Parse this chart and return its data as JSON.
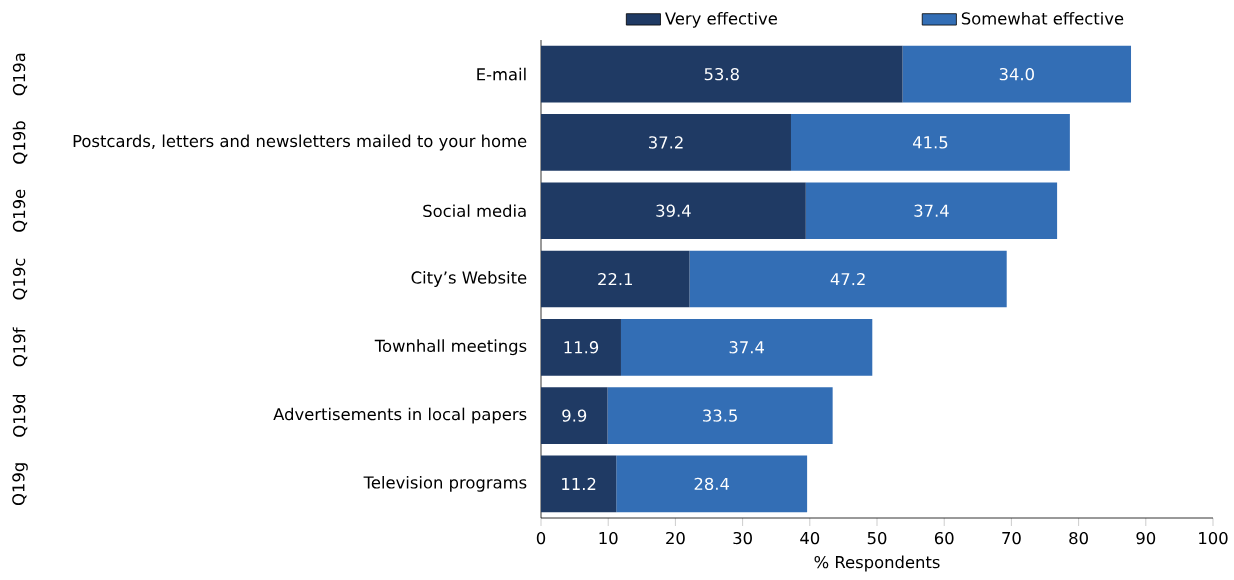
{
  "chart_data": {
    "type": "bar",
    "orientation": "horizontal",
    "stacked": true,
    "xlabel": "% Respondents",
    "categories": [
      "E-mail",
      "Postcards, letters and newsletters mailed to your home",
      "Social media",
      "City’s Website",
      "Townhall meetings",
      "Advertisements in local papers",
      "Television programs"
    ],
    "series": [
      {
        "name": "Very effective",
        "color": "#1f3a64",
        "values": [
          53.8,
          37.2,
          39.4,
          22.1,
          11.9,
          9.9,
          11.2
        ],
        "value_labels": [
          "53.8",
          "37.2",
          "39.4",
          "22.1",
          "11.9",
          "9.9",
          "11.2"
        ]
      },
      {
        "name": "Somewhat effective",
        "color": "#336eb5",
        "values": [
          34.0,
          41.5,
          37.4,
          47.2,
          37.4,
          33.5,
          28.4
        ],
        "value_labels": [
          "34.0",
          "41.5",
          "37.4",
          "47.2",
          "37.4",
          "33.5",
          "28.4"
        ]
      }
    ],
    "xlim": [
      0,
      100
    ],
    "xticks": [
      0,
      10,
      20,
      30,
      40,
      50,
      60,
      70,
      80,
      90,
      100
    ],
    "legend": "top",
    "grid": false,
    "annotations": [
      "Q19a",
      "Q19b",
      "Q19e",
      "Q19c",
      "Q19f",
      "Q19d",
      "Q19g"
    ]
  }
}
